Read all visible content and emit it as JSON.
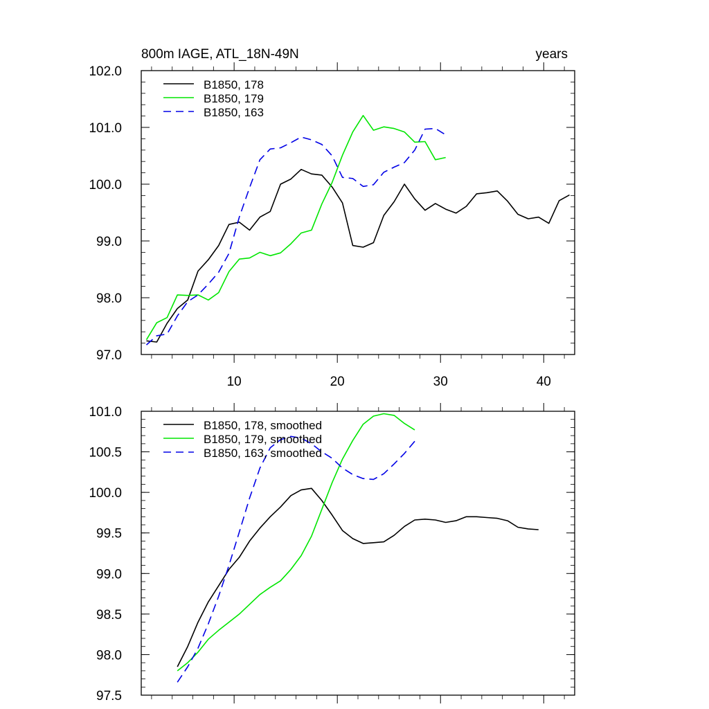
{
  "chart_data": [
    {
      "type": "line",
      "title_left": "800m IAGE, ATL_18N-49N",
      "title_right": "years",
      "xlabel": "",
      "ylabel": "",
      "xlim": [
        1,
        43
      ],
      "ylim": [
        97.0,
        102.0
      ],
      "x_ticks": [
        10,
        20,
        30,
        40
      ],
      "x_tick_labels": [
        "10",
        "20",
        "30",
        "40"
      ],
      "y_ticks": [
        97.0,
        98.0,
        99.0,
        100.0,
        101.0,
        102.0
      ],
      "y_tick_labels": [
        "97.0",
        "98.0",
        "99.0",
        "100.0",
        "101.0",
        "102.0"
      ],
      "legend_position": "top-left",
      "series": [
        {
          "name": "B1850, 178",
          "color": "#000000",
          "dash": "solid",
          "x": [
            1.5,
            2.5,
            3.5,
            4.5,
            5.5,
            6.5,
            7.5,
            8.5,
            9.5,
            10.5,
            11.5,
            12.5,
            13.5,
            14.5,
            15.5,
            16.5,
            17.5,
            18.5,
            19.5,
            20.5,
            21.5,
            22.5,
            23.5,
            24.5,
            25.5,
            26.5,
            27.5,
            28.5,
            29.5,
            30.5,
            31.5,
            32.5,
            33.5,
            34.5,
            35.5,
            36.5,
            37.5,
            38.5,
            39.5,
            40.5,
            41.5,
            42.5
          ],
          "values": [
            97.24,
            97.22,
            97.55,
            97.81,
            97.96,
            98.47,
            98.67,
            98.92,
            99.29,
            99.33,
            99.19,
            99.42,
            99.52,
            100.0,
            100.09,
            100.26,
            100.18,
            100.16,
            99.95,
            99.67,
            98.92,
            98.89,
            98.97,
            99.45,
            99.69,
            100.0,
            99.74,
            99.54,
            99.66,
            99.56,
            99.49,
            99.61,
            99.83,
            99.85,
            99.88,
            99.7,
            99.47,
            99.39,
            99.42,
            99.31,
            99.71,
            99.81
          ]
        },
        {
          "name": "B1850, 179",
          "color": "#00e600",
          "dash": "solid",
          "x": [
            1.5,
            2.5,
            3.5,
            4.5,
            5.5,
            6.5,
            7.5,
            8.5,
            9.5,
            10.5,
            11.5,
            12.5,
            13.5,
            14.5,
            15.5,
            16.5,
            17.5,
            18.5,
            19.5,
            20.5,
            21.5,
            22.5,
            23.5,
            24.5,
            25.5,
            26.5,
            27.5,
            28.5,
            29.5,
            30.5
          ],
          "values": [
            97.26,
            97.56,
            97.65,
            98.05,
            98.04,
            98.05,
            97.96,
            98.09,
            98.46,
            98.68,
            98.7,
            98.8,
            98.74,
            98.79,
            98.95,
            99.14,
            99.19,
            99.65,
            100.03,
            100.51,
            100.92,
            101.21,
            100.95,
            101.01,
            100.98,
            100.92,
            100.74,
            100.75,
            100.43,
            100.47
          ]
        },
        {
          "name": "B1850, 163",
          "color": "#0000e6",
          "dash": "dashed",
          "x": [
            1.5,
            2.5,
            3.5,
            4.5,
            5.5,
            6.5,
            7.5,
            8.5,
            9.5,
            10.5,
            11.5,
            12.5,
            13.5,
            14.5,
            15.5,
            16.5,
            17.5,
            18.5,
            19.5,
            20.5,
            21.5,
            22.5,
            23.5,
            24.5,
            25.5,
            26.5,
            27.5,
            28.5,
            29.5,
            30.5
          ],
          "values": [
            97.17,
            97.33,
            97.36,
            97.68,
            97.93,
            98.05,
            98.24,
            98.45,
            98.78,
            99.42,
            99.94,
            100.43,
            100.62,
            100.64,
            100.73,
            100.83,
            100.78,
            100.7,
            100.5,
            100.12,
            100.1,
            99.96,
            99.99,
            100.21,
            100.3,
            100.38,
            100.6,
            100.97,
            100.98,
            100.87
          ]
        }
      ]
    },
    {
      "type": "line",
      "title_left": "",
      "title_right": "",
      "xlabel": "",
      "ylabel": "",
      "xlim": [
        1,
        43
      ],
      "ylim": [
        97.5,
        101.0
      ],
      "x_ticks": [
        10,
        20,
        30,
        40
      ],
      "x_tick_labels": [],
      "y_ticks": [
        97.5,
        98.0,
        98.5,
        99.0,
        99.5,
        100.0,
        100.5,
        101.0
      ],
      "y_tick_labels": [
        "97.5",
        "98.0",
        "98.5",
        "99.0",
        "99.5",
        "100.0",
        "100.5",
        "101.0"
      ],
      "legend_position": "top-left",
      "series": [
        {
          "name": "B1850, 178, smoothed",
          "color": "#000000",
          "dash": "solid",
          "x": [
            4.5,
            5.5,
            6.5,
            7.5,
            8.5,
            9.5,
            10.5,
            11.5,
            12.5,
            13.5,
            14.5,
            15.5,
            16.5,
            17.5,
            18.5,
            19.5,
            20.5,
            21.5,
            22.5,
            23.5,
            24.5,
            25.5,
            26.5,
            27.5,
            28.5,
            29.5,
            30.5,
            31.5,
            32.5,
            33.5,
            34.5,
            35.5,
            36.5,
            37.5,
            38.5,
            39.5
          ],
          "values": [
            97.85,
            98.1,
            98.4,
            98.65,
            98.85,
            99.05,
            99.2,
            99.4,
            99.56,
            99.7,
            99.82,
            99.96,
            100.03,
            100.05,
            99.9,
            99.72,
            99.53,
            99.43,
            99.37,
            99.38,
            99.39,
            99.47,
            99.58,
            99.66,
            99.67,
            99.66,
            99.63,
            99.65,
            99.7,
            99.7,
            99.69,
            99.68,
            99.65,
            99.57,
            99.55,
            99.54
          ]
        },
        {
          "name": "B1850, 179, smoothed",
          "color": "#00e600",
          "dash": "solid",
          "x": [
            4.5,
            5.5,
            6.5,
            7.5,
            8.5,
            9.5,
            10.5,
            11.5,
            12.5,
            13.5,
            14.5,
            15.5,
            16.5,
            17.5,
            18.5,
            19.5,
            20.5,
            21.5,
            22.5,
            23.5,
            24.5,
            25.5,
            26.5,
            27.5
          ],
          "values": [
            97.8,
            97.9,
            98.03,
            98.19,
            98.3,
            98.4,
            98.5,
            98.62,
            98.74,
            98.83,
            98.91,
            99.05,
            99.22,
            99.46,
            99.79,
            100.12,
            100.41,
            100.64,
            100.84,
            100.94,
            100.97,
            100.95,
            100.85,
            100.77
          ]
        },
        {
          "name": "B1850, 163, smoothed",
          "color": "#0000e6",
          "dash": "dashed",
          "x": [
            4.5,
            5.5,
            6.5,
            7.5,
            8.5,
            9.5,
            10.5,
            11.5,
            12.5,
            13.5,
            14.5,
            15.5,
            16.5,
            17.5,
            18.5,
            19.5,
            20.5,
            21.5,
            22.5,
            23.5,
            24.5,
            25.5,
            26.5,
            27.5
          ],
          "values": [
            97.66,
            97.85,
            98.08,
            98.38,
            98.72,
            99.1,
            99.51,
            99.93,
            100.3,
            100.55,
            100.65,
            100.69,
            100.67,
            100.6,
            100.5,
            100.42,
            100.3,
            100.22,
            100.17,
            100.16,
            100.23,
            100.35,
            100.48,
            100.63
          ]
        }
      ]
    }
  ]
}
